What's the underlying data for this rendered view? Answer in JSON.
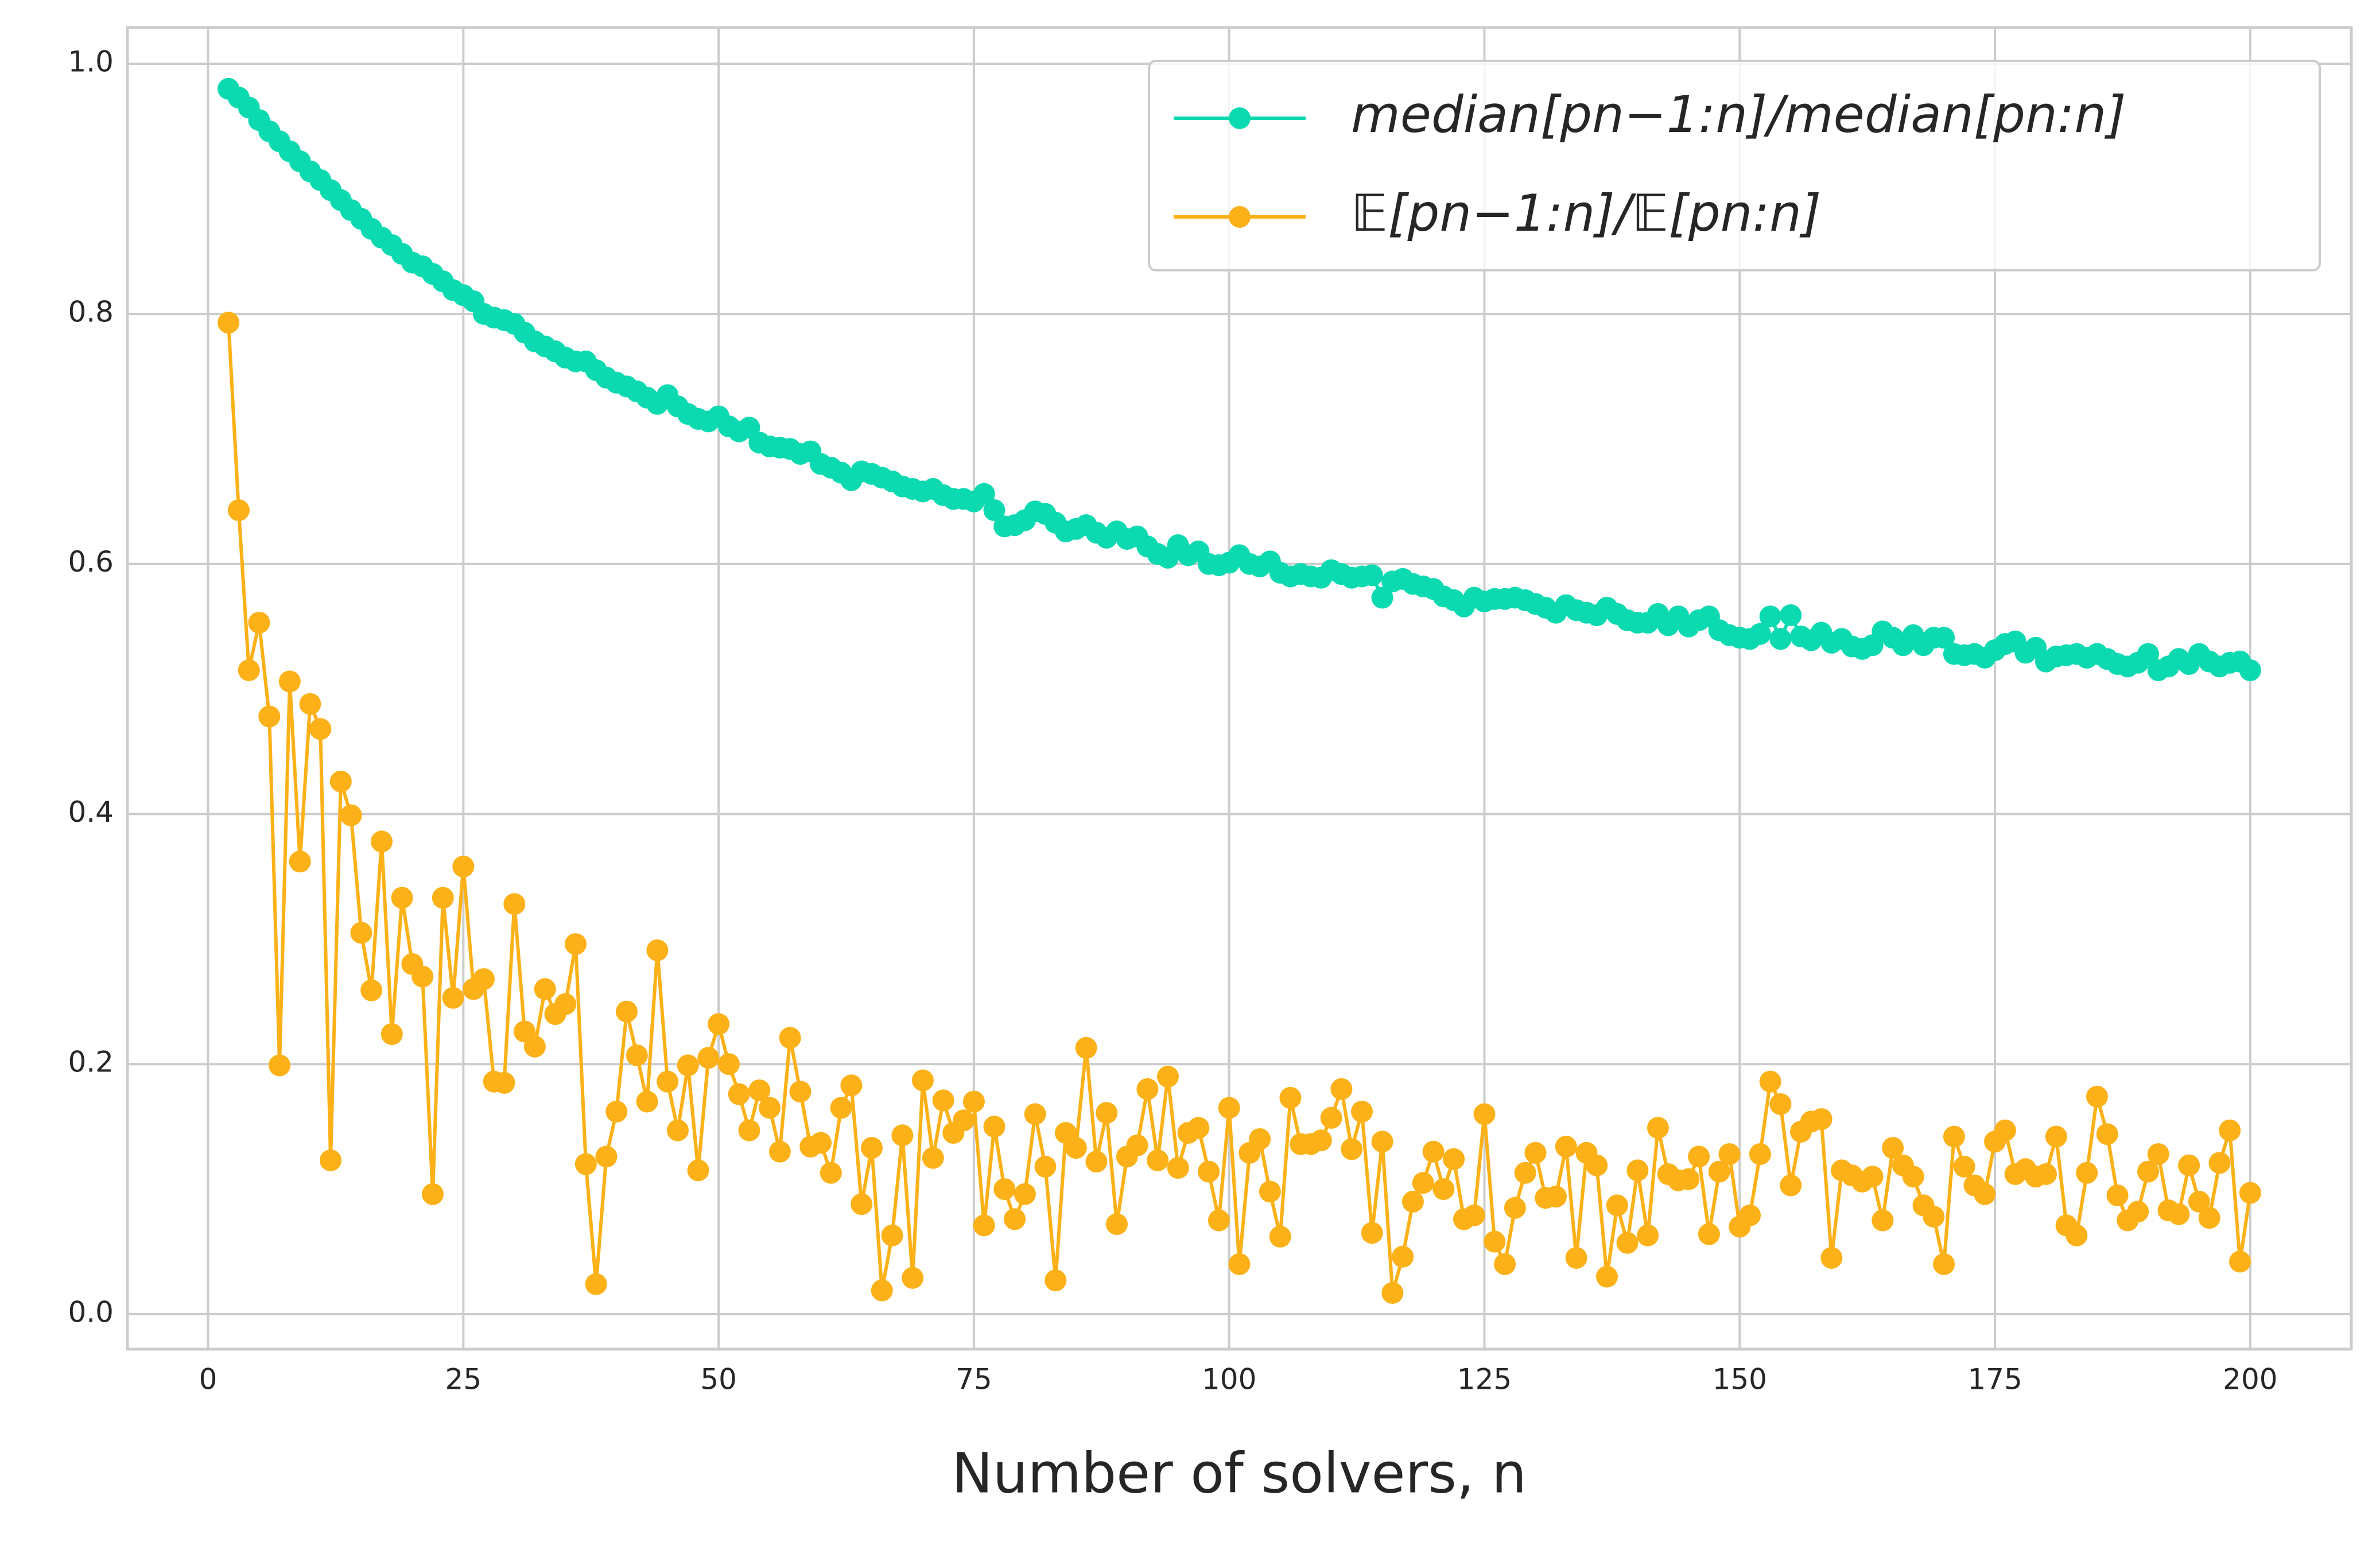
{
  "chart_data": {
    "type": "line",
    "x_label": "Number of solvers, n",
    "x": [
      2,
      3,
      4,
      5,
      6,
      7,
      8,
      9,
      10,
      11,
      12,
      13,
      14,
      15,
      16,
      17,
      18,
      19,
      20,
      21,
      22,
      23,
      24,
      25,
      26,
      27,
      28,
      29,
      30,
      31,
      32,
      33,
      34,
      35,
      36,
      37,
      38,
      39,
      40,
      41,
      42,
      43,
      44,
      45,
      46,
      47,
      48,
      49,
      50,
      51,
      52,
      53,
      54,
      55,
      56,
      57,
      58,
      59,
      60,
      61,
      62,
      63,
      64,
      65,
      66,
      67,
      68,
      69,
      70,
      71,
      72,
      73,
      74,
      75,
      76,
      77,
      78,
      79,
      80,
      81,
      82,
      83,
      84,
      85,
      86,
      87,
      88,
      89,
      90,
      91,
      92,
      93,
      94,
      95,
      96,
      97,
      98,
      99,
      100,
      101,
      102,
      103,
      104,
      105,
      106,
      107,
      108,
      109,
      110,
      111,
      112,
      113,
      114,
      115,
      116,
      117,
      118,
      119,
      120,
      121,
      122,
      123,
      124,
      125,
      126,
      127,
      128,
      129,
      130,
      131,
      132,
      133,
      134,
      135,
      136,
      137,
      138,
      139,
      140,
      141,
      142,
      143,
      144,
      145,
      146,
      147,
      148,
      149,
      150,
      151,
      152,
      153,
      154,
      155,
      156,
      157,
      158,
      159,
      160,
      161,
      162,
      163,
      164,
      165,
      166,
      167,
      168,
      169,
      170,
      171,
      172,
      173,
      174,
      175,
      176,
      177,
      178,
      179,
      180,
      181,
      182,
      183,
      184,
      185,
      186,
      187,
      188,
      189,
      190,
      191,
      192,
      193,
      194,
      195,
      196,
      197,
      198,
      199,
      200
    ],
    "series": [
      {
        "name": "median[pn−1:n]/median[pn:n]",
        "color": "#0bd9b0",
        "values": [
          0.98,
          0.973,
          0.965,
          0.955,
          0.946,
          0.938,
          0.93,
          0.922,
          0.914,
          0.907,
          0.899,
          0.891,
          0.883,
          0.876,
          0.868,
          0.861,
          0.855,
          0.848,
          0.841,
          0.838,
          0.832,
          0.826,
          0.819,
          0.815,
          0.81,
          0.8,
          0.797,
          0.795,
          0.792,
          0.785,
          0.778,
          0.774,
          0.77,
          0.765,
          0.762,
          0.762,
          0.755,
          0.749,
          0.745,
          0.742,
          0.738,
          0.733,
          0.728,
          0.735,
          0.726,
          0.72,
          0.716,
          0.714,
          0.718,
          0.71,
          0.706,
          0.709,
          0.697,
          0.694,
          0.693,
          0.692,
          0.688,
          0.69,
          0.68,
          0.677,
          0.673,
          0.667,
          0.674,
          0.672,
          0.669,
          0.666,
          0.662,
          0.66,
          0.658,
          0.66,
          0.655,
          0.652,
          0.652,
          0.65,
          0.656,
          0.643,
          0.63,
          0.631,
          0.635,
          0.642,
          0.64,
          0.633,
          0.626,
          0.628,
          0.631,
          0.625,
          0.621,
          0.626,
          0.62,
          0.622,
          0.614,
          0.608,
          0.605,
          0.615,
          0.607,
          0.61,
          0.6,
          0.599,
          0.601,
          0.607,
          0.6,
          0.598,
          0.602,
          0.593,
          0.59,
          0.592,
          0.59,
          0.589,
          0.595,
          0.592,
          0.589,
          0.59,
          0.591,
          0.573,
          0.586,
          0.588,
          0.584,
          0.582,
          0.58,
          0.574,
          0.571,
          0.566,
          0.573,
          0.57,
          0.572,
          0.572,
          0.573,
          0.571,
          0.568,
          0.565,
          0.561,
          0.567,
          0.563,
          0.561,
          0.559,
          0.565,
          0.56,
          0.555,
          0.553,
          0.553,
          0.56,
          0.551,
          0.558,
          0.55,
          0.555,
          0.558,
          0.547,
          0.543,
          0.541,
          0.54,
          0.544,
          0.558,
          0.54,
          0.559,
          0.542,
          0.539,
          0.545,
          0.537,
          0.54,
          0.534,
          0.532,
          0.535,
          0.546,
          0.541,
          0.535,
          0.543,
          0.535,
          0.541,
          0.541,
          0.528,
          0.527,
          0.528,
          0.525,
          0.531,
          0.536,
          0.538,
          0.529,
          0.533,
          0.522,
          0.526,
          0.527,
          0.528,
          0.525,
          0.528,
          0.524,
          0.52,
          0.518,
          0.521,
          0.528,
          0.515,
          0.518,
          0.524,
          0.52,
          0.528,
          0.522,
          0.518,
          0.521,
          0.522,
          0.515
        ]
      },
      {
        "name": "𝔼[pn−1:n]/𝔼[pn:n]",
        "color": "#fbb117",
        "values": [
          0.793,
          0.643,
          0.515,
          0.553,
          0.478,
          0.199,
          0.506,
          0.362,
          0.488,
          0.468,
          0.123,
          0.426,
          0.399,
          0.305,
          0.259,
          0.378,
          0.224,
          0.333,
          0.28,
          0.27,
          0.096,
          0.333,
          0.253,
          0.358,
          0.26,
          0.268,
          0.186,
          0.185,
          0.328,
          0.226,
          0.214,
          0.26,
          0.24,
          0.248,
          0.296,
          0.12,
          0.024,
          0.126,
          0.162,
          0.242,
          0.207,
          0.17,
          0.291,
          0.186,
          0.147,
          0.199,
          0.115,
          0.205,
          0.232,
          0.2,
          0.176,
          0.147,
          0.179,
          0.165,
          0.13,
          0.221,
          0.178,
          0.134,
          0.137,
          0.113,
          0.165,
          0.183,
          0.088,
          0.133,
          0.019,
          0.063,
          0.143,
          0.029,
          0.187,
          0.125,
          0.171,
          0.145,
          0.155,
          0.17,
          0.071,
          0.15,
          0.1,
          0.076,
          0.096,
          0.16,
          0.118,
          0.027,
          0.145,
          0.133,
          0.213,
          0.122,
          0.161,
          0.072,
          0.126,
          0.135,
          0.18,
          0.123,
          0.19,
          0.117,
          0.145,
          0.149,
          0.114,
          0.075,
          0.165,
          0.04,
          0.129,
          0.14,
          0.098,
          0.062,
          0.173,
          0.136,
          0.136,
          0.139,
          0.157,
          0.18,
          0.132,
          0.162,
          0.065,
          0.138,
          0.017,
          0.046,
          0.09,
          0.105,
          0.13,
          0.1,
          0.124,
          0.076,
          0.079,
          0.16,
          0.058,
          0.04,
          0.085,
          0.113,
          0.129,
          0.093,
          0.094,
          0.134,
          0.045,
          0.129,
          0.119,
          0.03,
          0.087,
          0.057,
          0.115,
          0.063,
          0.149,
          0.112,
          0.107,
          0.108,
          0.126,
          0.064,
          0.114,
          0.128,
          0.07,
          0.079,
          0.128,
          0.186,
          0.168,
          0.103,
          0.146,
          0.154,
          0.156,
          0.045,
          0.115,
          0.111,
          0.106,
          0.11,
          0.075,
          0.133,
          0.119,
          0.11,
          0.087,
          0.078,
          0.04,
          0.142,
          0.118,
          0.103,
          0.096,
          0.138,
          0.147,
          0.112,
          0.116,
          0.11,
          0.112,
          0.142,
          0.071,
          0.063,
          0.113,
          0.174,
          0.144,
          0.095,
          0.075,
          0.082,
          0.114,
          0.128,
          0.083,
          0.08,
          0.119,
          0.09,
          0.077,
          0.121,
          0.147,
          0.042,
          0.097
        ]
      }
    ],
    "xlim": [
      -7.9,
      209.9
    ],
    "ylim": [
      -0.028,
      1.029
    ],
    "xticks": [
      0,
      25,
      50,
      75,
      100,
      125,
      150,
      175,
      200
    ],
    "yticks": [
      {
        "value": 0,
        "label": "0.0"
      },
      0.2,
      0.4,
      0.6,
      0.8,
      {
        "value": 1,
        "label": "1.0"
      }
    ],
    "grid": true,
    "legend": "upper right"
  }
}
